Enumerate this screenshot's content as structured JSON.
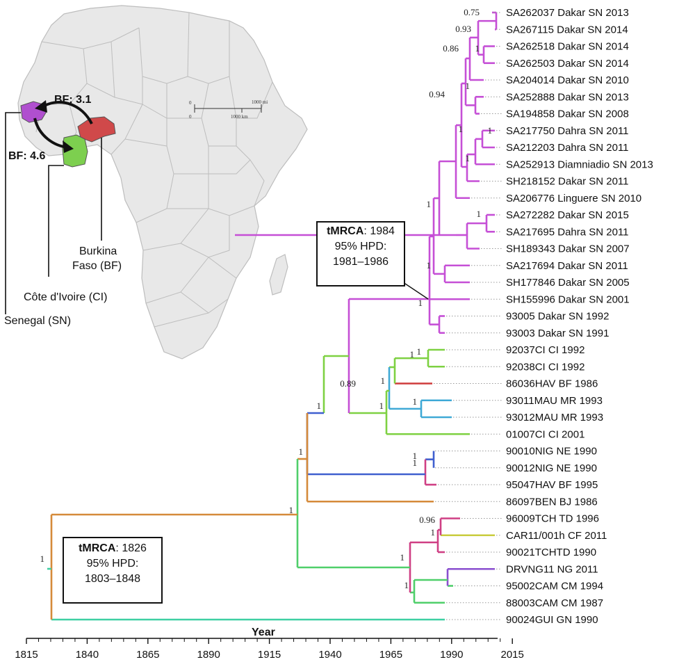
{
  "axis": {
    "title": "Year",
    "ticks": [
      "1815",
      "1840",
      "1865",
      "1890",
      "1915",
      "1940",
      "1965",
      "1990",
      "2015"
    ]
  },
  "boxes": {
    "recent": {
      "label": "tMRCA",
      "value": ": 1984",
      "hpd_label": "95% HPD:",
      "hpd_range": "1981–1986"
    },
    "root": {
      "label": "tMRCA",
      "value": ": 1826",
      "hpd_label": "95% HPD:",
      "hpd_range": "1803–1848"
    }
  },
  "map": {
    "countries": {
      "senegal": "Senegal (SN)",
      "cote_divoire": "Côte d'Ivoire (CI)",
      "burkina_line1": "Burkina",
      "burkina_line2": "Faso (BF)"
    },
    "arrows": {
      "upper": "BF: 3.1",
      "lower": "BF: 4.6"
    },
    "scalebar": {
      "top_zero": "0",
      "top_value": "1000 mi",
      "bottom_zero": "0",
      "bottom_value": "1000 km"
    },
    "colors": {
      "senegal": "#b04fcf",
      "cote_divoire": "#7dcf4f",
      "burkina": "#d0494a",
      "land": "#e8e8e8",
      "border": "#bdbdbd"
    }
  },
  "colors": {
    "senegal_clade": "#c54fd6",
    "cote_divoire": "#7ed142",
    "burkina": "#cf3c3c",
    "mauritania": "#3fa9d6",
    "niger": "#3f5fcf",
    "benin": "#d58a3a",
    "chad": "#cf3f84",
    "central_african": "#c9cc3f",
    "nigeria": "#8a4fcf",
    "cameroon": "#4fcf6a",
    "guinea": "#3fcfa3"
  },
  "tips": [
    "SA262037 Dakar SN 2013",
    "SA267115 Dakar SN 2014",
    "SA262518 Dakar SN 2014",
    "SA262503 Dakar SN 2014",
    "SA204014 Dakar SN 2010",
    "SA252888 Dakar SN 2013",
    "SA194858 Dakar SN 2008",
    "SA217750 Dahra SN 2011",
    "SA212203 Dahra SN 2011",
    "SA252913 Diamniadio SN 2013",
    "SH218152 Dakar SN 2011",
    "SA206776 Linguere SN 2010",
    "SA272282 Dakar SN 2015",
    "SA217695 Dahra SN 2011",
    "SH189343 Dakar SN 2007",
    "SA217694 Dakar SN 2011",
    "SH177846 Dakar SN 2005",
    "SH155996 Dakar SN 2001",
    "93005 Dakar SN 1992",
    "93003 Dakar SN 1991",
    "92037CI CI 1992",
    "92038CI CI 1992",
    "86036HAV BF 1986",
    "93011MAU MR 1993",
    "93012MAU MR 1993",
    "01007CI CI 2001",
    "90010NIG NE 1990",
    "90012NIG NE 1990",
    "95047HAV BF 1995",
    "86097BEN BJ 1986",
    "96009TCH TD 1996",
    "CAR11/001h CF 2011",
    "90021TCHTD 1990",
    "DRVNG11 NG 2011",
    "95002CAM CM 1994",
    "88003CAM CM 1987",
    "90024GUI GN 1990"
  ],
  "supports": [
    "0.75",
    "0.93",
    "1",
    "0.86",
    "1",
    "0.94",
    "1",
    "1",
    "1",
    "1",
    "1",
    "1",
    "1",
    "1",
    "1",
    "1",
    "0.89",
    "1",
    "1",
    "1",
    "1",
    "1",
    "1",
    "1",
    "0.96",
    "1",
    "1",
    "1",
    "1"
  ]
}
